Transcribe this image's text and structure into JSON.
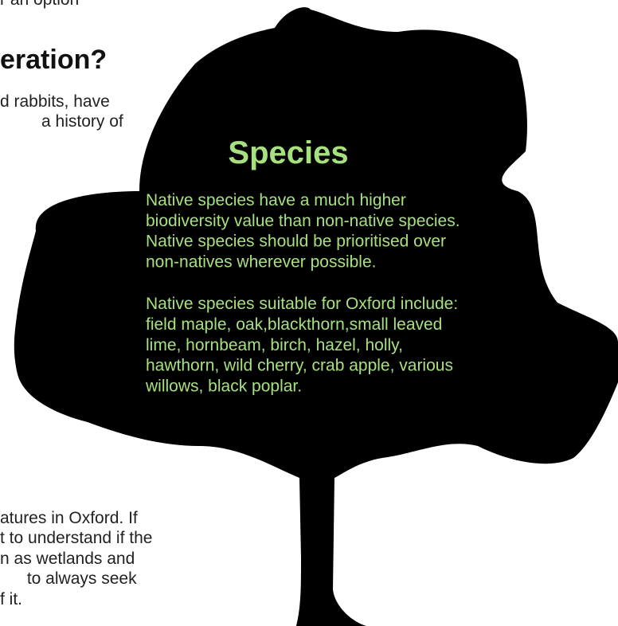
{
  "page": {
    "background": {
      "top_line": "r an option",
      "heading": "eration?",
      "intro_lines": [
        "d rabbits, have",
        "a history of"
      ],
      "bottom_lines": [
        "atures in Oxford. If",
        "t to understand if the",
        "n as wetlands and",
        " to always seek",
        "f it."
      ]
    },
    "tree": {
      "title": "Species",
      "paragraphs": [
        [
          "Native species have a much higher",
          "biodiversity value than non-native species.",
          "Native species should be prioritised over",
          "non-natives wherever possible."
        ],
        [
          "Native species suitable for Oxford include:",
          "field maple, oak,blackthorn,small leaved",
          "lime, hornbeam, birch, hazel, holly,",
          "hawthorn, wild cherry, crab apple, various",
          "willows, black poplar."
        ]
      ]
    }
  }
}
